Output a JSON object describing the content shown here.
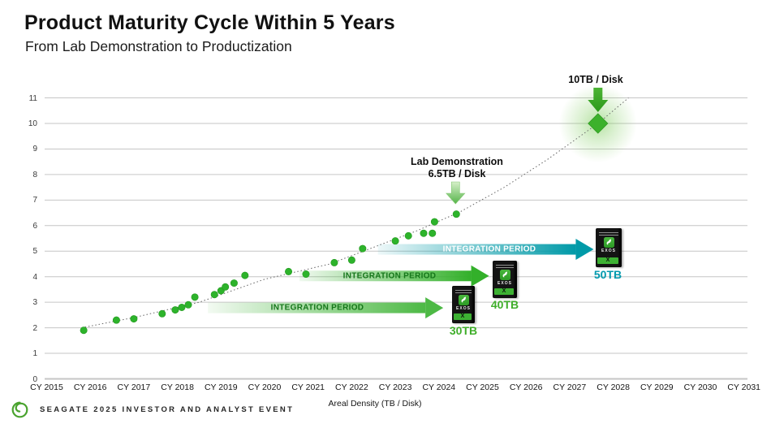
{
  "header": {
    "title": "Product Maturity Cycle Within 5 Years",
    "subtitle": "From Lab Demonstration to Productization"
  },
  "chart_data": {
    "type": "scatter",
    "title": "Product Maturity Cycle Within 5 Years",
    "subtitle": "From Lab Demonstration to Productization",
    "xlabel": "Areal Density (TB / Disk)",
    "x_ticks": [
      "CY 2015",
      "CY 2016",
      "CY 2017",
      "CY 2018",
      "CY 2019",
      "CY 2020",
      "CY 2021",
      "CY 2022",
      "CY 2023",
      "CY 2024",
      "CY 2025",
      "CY 2026",
      "CY 2027",
      "CY 2028",
      "CY 2029",
      "CY 2030",
      "CY 2031"
    ],
    "x_range": [
      2015,
      2031
    ],
    "y_ticks": [
      0,
      1,
      2,
      3,
      4,
      5,
      6,
      7,
      8,
      9,
      10,
      11
    ],
    "y_range": [
      0,
      11
    ],
    "grid": "horizontal",
    "legend": "none",
    "points": [
      [
        2015.85,
        1.9
      ],
      [
        2016.6,
        2.3
      ],
      [
        2017.0,
        2.35
      ],
      [
        2017.65,
        2.55
      ],
      [
        2017.95,
        2.7
      ],
      [
        2018.1,
        2.8
      ],
      [
        2018.25,
        2.9
      ],
      [
        2018.4,
        3.2
      ],
      [
        2018.85,
        3.3
      ],
      [
        2019.0,
        3.45
      ],
      [
        2019.1,
        3.6
      ],
      [
        2019.3,
        3.75
      ],
      [
        2019.55,
        4.05
      ],
      [
        2020.55,
        4.2
      ],
      [
        2020.95,
        4.1
      ],
      [
        2021.6,
        4.55
      ],
      [
        2022.0,
        4.65
      ],
      [
        2022.25,
        5.1
      ],
      [
        2023.0,
        5.4
      ],
      [
        2023.3,
        5.6
      ],
      [
        2023.65,
        5.7
      ],
      [
        2023.85,
        5.7
      ],
      [
        2023.9,
        6.15
      ],
      [
        2024.4,
        6.45
      ]
    ],
    "trendline": {
      "style": "dotted",
      "points": [
        [
          2015.8,
          2.0
        ],
        [
          2017.0,
          2.4
        ],
        [
          2018.5,
          3.0
        ],
        [
          2020.0,
          3.9
        ],
        [
          2021.5,
          4.5
        ],
        [
          2022.5,
          5.15
        ],
        [
          2023.5,
          5.8
        ],
        [
          2024.5,
          6.55
        ],
        [
          2025.5,
          7.5
        ],
        [
          2026.5,
          8.6
        ],
        [
          2027.65,
          10.0
        ],
        [
          2028.35,
          11.0
        ]
      ]
    },
    "lab_demo_annotation": {
      "line1": "Lab Demonstration",
      "line2": "6.5TB / Disk",
      "points_to": [
        2024.4,
        6.5
      ]
    },
    "target_annotation": {
      "label": "10TB / Disk",
      "marker": "diamond",
      "at": [
        2027.65,
        10
      ],
      "glow": true
    },
    "integration_periods": [
      {
        "label": "INTEGRATION PERIOD",
        "row_value": 2.78,
        "from_year": 2018.7,
        "to_year": 2024.1,
        "color": "#4db945",
        "text_color": "#15761a",
        "product": "30TB"
      },
      {
        "label": "INTEGRATION PERIOD",
        "row_value": 4.03,
        "from_year": 2020.8,
        "to_year": 2025.15,
        "color": "#33b02a",
        "text_color": "#15761a",
        "product": "40TB"
      },
      {
        "label": "INTEGRATION PERIOD",
        "row_value": 5.07,
        "from_year": 2022.6,
        "to_year": 2027.55,
        "color": "#009aa8",
        "text_color": "#ffffff",
        "product": "50TB"
      }
    ],
    "drives": [
      {
        "label": "30TB",
        "brand": "EXOS",
        "series": "X",
        "label_color": "#3fae2a"
      },
      {
        "label": "40TB",
        "brand": "EXOS",
        "series": "X",
        "label_color": "#3fae2a"
      },
      {
        "label": "50TB",
        "brand": "EXOS",
        "series": "X",
        "label_color": "#0099ad"
      }
    ],
    "colors": {
      "point": "#2db32b",
      "diamond": "#3cb12c",
      "grid": "#c6c6c6",
      "trendline": "#666666",
      "arrow_green_dark": "#35a522",
      "arrow_green_light": "#d6efc9"
    }
  },
  "footer": {
    "event_label": "SEAGATE 2025 INVESTOR AND ANALYST EVENT"
  }
}
